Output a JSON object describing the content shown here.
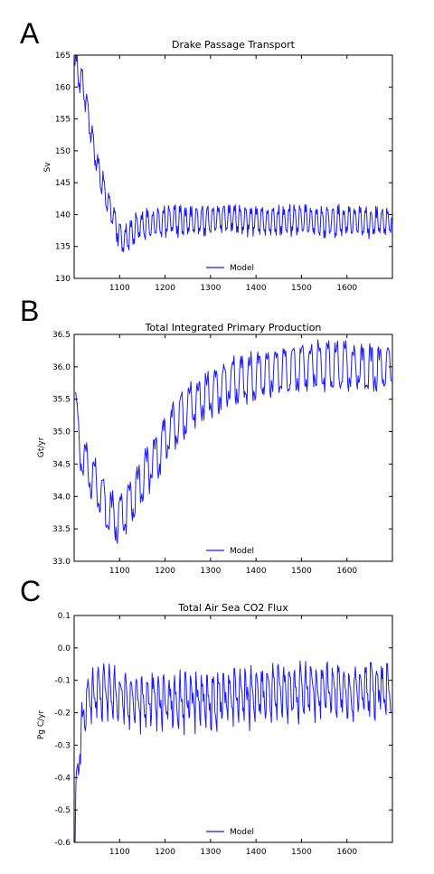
{
  "colors": {
    "series": "#1a1aff",
    "axis": "#000000"
  },
  "chart_data": [
    {
      "panel": "A",
      "type": "line",
      "title": "Drake Passage Transport",
      "ylabel": "Sv",
      "xlabel": "",
      "xlim": [
        1000,
        1700
      ],
      "ylim": [
        130,
        165
      ],
      "xticks": [
        1100,
        1200,
        1300,
        1400,
        1500,
        1600
      ],
      "yticks": [
        130,
        135,
        140,
        145,
        150,
        155,
        160,
        165
      ],
      "ytick_labels": [
        "130",
        "135",
        "140",
        "145",
        "150",
        "155",
        "160",
        "165"
      ],
      "legend": "lower center",
      "grid": false,
      "series": [
        {
          "name": "Model",
          "x": [
            1002,
            1010,
            1020,
            1030,
            1040,
            1050,
            1060,
            1070,
            1080,
            1090,
            1100,
            1110,
            1120,
            1130,
            1140,
            1150,
            1175,
            1200,
            1225,
            1250,
            1275,
            1300,
            1325,
            1350,
            1375,
            1400,
            1425,
            1450,
            1475,
            1500,
            1525,
            1550,
            1575,
            1600,
            1625,
            1650,
            1675,
            1698
          ],
          "y": [
            164,
            162,
            160,
            156,
            152,
            148,
            145,
            143,
            141,
            139,
            137,
            136,
            137,
            137.5,
            138,
            138.5,
            138.5,
            139,
            139,
            139,
            139,
            139.2,
            139.5,
            139.5,
            139,
            139.3,
            139,
            139,
            139,
            139,
            139,
            138.8,
            139,
            139,
            139,
            138.7,
            138.8,
            139
          ],
          "oscillation": {
            "period_years": 12,
            "amplitude": 2.6
          }
        }
      ]
    },
    {
      "panel": "B",
      "type": "line",
      "title": "Total Integrated Primary Production",
      "ylabel": "Gt/yr",
      "xlabel": "",
      "xlim": [
        1000,
        1700
      ],
      "ylim": [
        33.0,
        36.5
      ],
      "xticks": [
        1100,
        1200,
        1300,
        1400,
        1500,
        1600
      ],
      "yticks": [
        33.0,
        33.5,
        34.0,
        34.5,
        35.0,
        35.5,
        36.0,
        36.5
      ],
      "ytick_labels": [
        "33.0",
        "33.5",
        "34.0",
        "34.5",
        "35.0",
        "35.5",
        "36.0",
        "36.5"
      ],
      "legend": "lower center",
      "grid": false,
      "series": [
        {
          "name": "Model",
          "x": [
            1002,
            1010,
            1020,
            1040,
            1060,
            1080,
            1100,
            1120,
            1150,
            1175,
            1200,
            1225,
            1250,
            1275,
            1300,
            1325,
            1350,
            1375,
            1400,
            1425,
            1450,
            1475,
            1500,
            1525,
            1550,
            1575,
            1600,
            1625,
            1650,
            1675,
            1698
          ],
          "y": [
            35.5,
            34.9,
            34.6,
            34.3,
            34.0,
            33.7,
            33.65,
            33.85,
            34.25,
            34.55,
            34.9,
            35.15,
            35.35,
            35.5,
            35.6,
            35.7,
            35.78,
            35.83,
            35.87,
            35.9,
            35.95,
            35.98,
            36.0,
            36.02,
            36.02,
            36.0,
            36.0,
            35.98,
            35.97,
            35.97,
            36.0
          ],
          "oscillation": {
            "period_years": 19,
            "amplitude": 0.42
          }
        }
      ]
    },
    {
      "panel": "C",
      "type": "line",
      "title": "Total Air Sea CO2 Flux",
      "ylabel": "Pg C/yr",
      "xlabel": "",
      "xlim": [
        1000,
        1700
      ],
      "ylim": [
        -0.6,
        0.1
      ],
      "xticks": [
        1100,
        1200,
        1300,
        1400,
        1500,
        1600
      ],
      "yticks": [
        -0.6,
        -0.5,
        -0.4,
        -0.3,
        -0.2,
        -0.1,
        0.0,
        0.1
      ],
      "ytick_labels": [
        "-0.6",
        "-0.5",
        "-0.4",
        "-0.3",
        "-0.2",
        "-0.1",
        "0.0",
        "0.1"
      ],
      "legend": "lower center",
      "grid": false,
      "series": [
        {
          "name": "Model",
          "x": [
            1002,
            1008,
            1015,
            1025,
            1040,
            1060,
            1080,
            1100,
            1150,
            1200,
            1250,
            1300,
            1350,
            1400,
            1450,
            1500,
            1550,
            1600,
            1650,
            1698
          ],
          "y": [
            -0.58,
            -0.4,
            -0.28,
            -0.2,
            -0.16,
            -0.15,
            -0.16,
            -0.17,
            -0.18,
            -0.18,
            -0.18,
            -0.18,
            -0.17,
            -0.16,
            -0.15,
            -0.15,
            -0.15,
            -0.15,
            -0.15,
            -0.15
          ],
          "oscillation": {
            "period_years": 12,
            "amplitude": 0.13
          }
        }
      ]
    }
  ]
}
